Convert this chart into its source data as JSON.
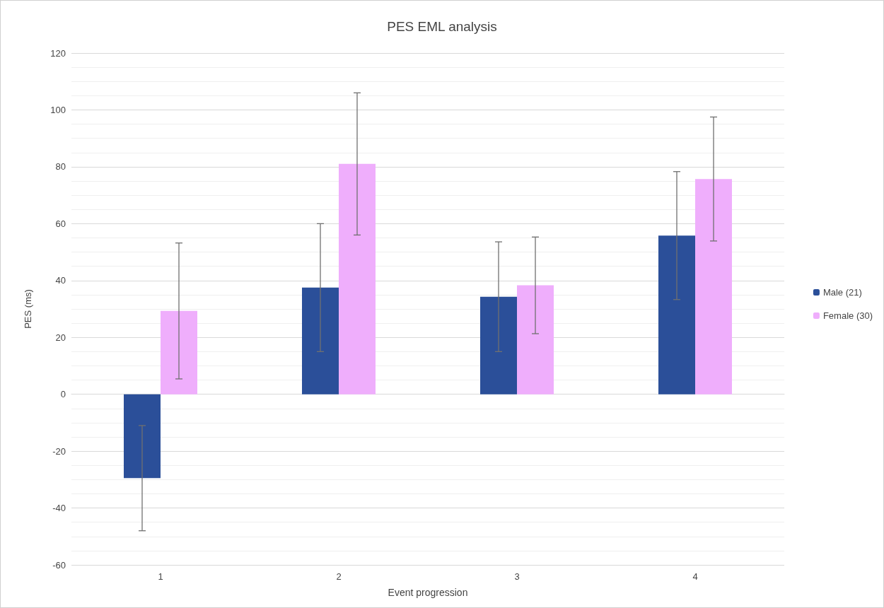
{
  "chart_data": {
    "type": "bar",
    "title": "PES EML analysis",
    "xlabel": "Event progression",
    "ylabel": "PES (ms)",
    "categories": [
      "1",
      "2",
      "3",
      "4"
    ],
    "series": [
      {
        "name": "Male (21)",
        "color": "#2b4f99",
        "values": [
          -29.5,
          37.5,
          34.3,
          55.8
        ],
        "errors": [
          18.5,
          22.5,
          19.3,
          22.5
        ]
      },
      {
        "name": "Female (30)",
        "color": "#efaefc",
        "values": [
          29.3,
          81,
          38.3,
          75.7
        ],
        "errors": [
          23.9,
          25,
          17,
          21.8
        ]
      }
    ],
    "ylim": [
      -60,
      120
    ],
    "yticks": [
      -60,
      -40,
      -20,
      0,
      20,
      40,
      60,
      80,
      100,
      120
    ],
    "grid": "y",
    "legend": "right"
  }
}
